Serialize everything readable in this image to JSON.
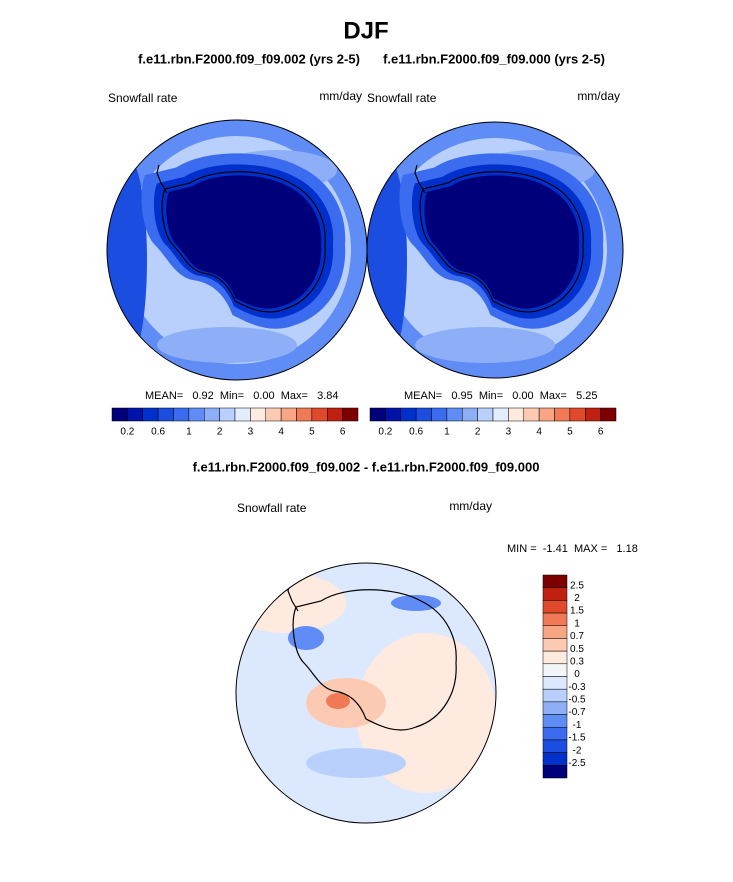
{
  "title": "DJF",
  "panels": [
    {
      "title": "f.e11.rbn.F2000.f09_f09.002 (yrs 2-5)",
      "variable": "Snowfall rate",
      "units": "mm/day",
      "stats": "MEAN=   0.92  Min=   0.00  Max=   3.84",
      "colorbar": {
        "labels": [
          "0.2",
          "0.6",
          "1",
          "2",
          "3",
          "4",
          "5",
          "6"
        ]
      }
    },
    {
      "title": "f.e11.rbn.F2000.f09_f09.000 (yrs 2-5)",
      "variable": "Snowfall rate",
      "units": "mm/day",
      "stats": "MEAN=   0.95  Min=   0.00  Max=   5.25",
      "colorbar": {
        "labels": [
          "0.2",
          "0.6",
          "1",
          "2",
          "3",
          "4",
          "5",
          "6"
        ]
      }
    }
  ],
  "difference": {
    "title": "f.e11.rbn.F2000.f09_f09.002 - f.e11.rbn.F2000.f09_f09.000",
    "variable": "Snowfall rate",
    "units": "mm/day",
    "stats": "MIN =  -1.41  MAX =   1.18",
    "colorbar": {
      "labels": [
        "2.5",
        "2",
        "1.5",
        "1",
        "0.7",
        "0.5",
        "0.3",
        "0",
        "-0.3",
        "-0.5",
        "-0.7",
        "-1",
        "-1.5",
        "-2",
        "-2.5"
      ]
    }
  }
}
